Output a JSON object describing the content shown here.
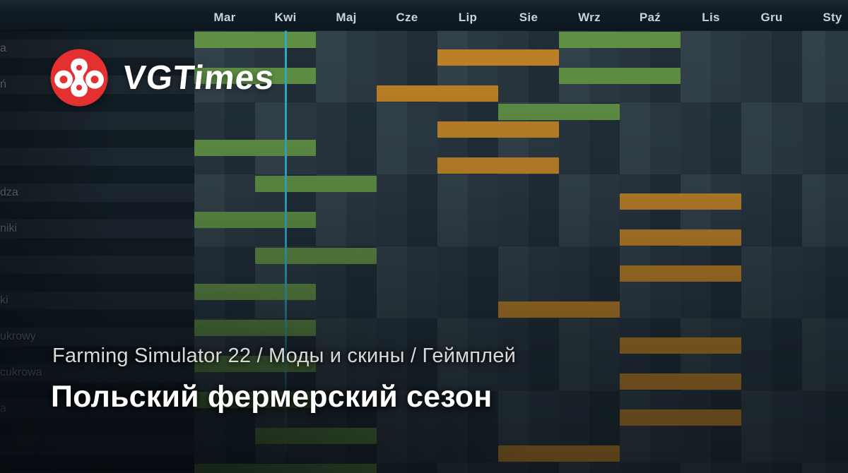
{
  "branding": {
    "name": "VGTimes",
    "logo": {
      "icon": "vgtimes-logo-icon",
      "bg_color": "#e43030",
      "glyph_color": "#ffffff"
    }
  },
  "breadcrumb": {
    "text": "Farming Simulator 22 / Моды и скины / Геймплей"
  },
  "title": {
    "text": "Польский фермерский сезон"
  },
  "chart_data": {
    "type": "gantt-calendar",
    "description_visible": "in-game crop calendar, green = planting period, orange = harvest period",
    "months": [
      "Mar",
      "Kwi",
      "Maj",
      "Cze",
      "Lip",
      "Sie",
      "Wrz",
      "Paź",
      "Lis",
      "Gru",
      "Sty"
    ],
    "today_marker": {
      "month": "Kwi",
      "position": "middle",
      "color": "#2fb9d6"
    },
    "colors": {
      "planting": "#6ca24b",
      "harvest": "#d7922a",
      "today_line": "#35c3dd"
    },
    "rows": [
      {
        "label_fragment": "a",
        "planting": [
          [
            "Mar",
            "Kwi"
          ],
          [
            "Wrz",
            "Paź"
          ]
        ],
        "harvest": [
          [
            "Lip",
            "Sie"
          ]
        ]
      },
      {
        "label_fragment": "ń",
        "planting": [
          [
            "Mar",
            "Kwi"
          ],
          [
            "Wrz",
            "Paź"
          ]
        ],
        "harvest": [
          [
            "Cze",
            "Lip"
          ]
        ]
      },
      {
        "label_fragment": "",
        "planting": [
          [
            "Sie",
            "Wrz"
          ]
        ],
        "harvest": [
          [
            "Lip",
            "Sie"
          ]
        ]
      },
      {
        "label_fragment": "",
        "planting": [
          [
            "Mar",
            "Kwi"
          ]
        ],
        "harvest": [
          [
            "Lip",
            "Sie"
          ]
        ]
      },
      {
        "label_fragment": "dza",
        "planting": [
          [
            "Kwi",
            "Maj"
          ]
        ],
        "harvest": [
          [
            "Paź",
            "Lis"
          ]
        ]
      },
      {
        "label_fragment": "niki",
        "planting": [
          [
            "Mar",
            "Kwi"
          ]
        ],
        "harvest": [
          [
            "Paź",
            "Lis"
          ]
        ]
      },
      {
        "label_fragment": "",
        "planting": [
          [
            "Kwi",
            "Maj"
          ]
        ],
        "harvest": [
          [
            "Paź",
            "Lis"
          ]
        ]
      },
      {
        "label_fragment": "ki",
        "planting": [
          [
            "Mar",
            "Kwi"
          ]
        ],
        "harvest": [
          [
            "Sie",
            "Wrz"
          ]
        ]
      },
      {
        "label_fragment": "ukrowy",
        "planting": [
          [
            "Mar",
            "Kwi"
          ]
        ],
        "harvest": [
          [
            "Paź",
            "Lis"
          ]
        ]
      },
      {
        "label_fragment": "cukrowa",
        "planting": [
          [
            "Mar",
            "Kwi"
          ]
        ],
        "harvest": [
          [
            "Paź",
            "Lis"
          ]
        ]
      },
      {
        "label_fragment": "a",
        "planting": [
          [
            "Mar",
            "Kwi"
          ]
        ],
        "harvest": [
          [
            "Paź",
            "Lis"
          ]
        ]
      },
      {
        "label_fragment": "",
        "planting": [
          [
            "Kwi",
            "Maj"
          ]
        ],
        "harvest": [
          [
            "Sie",
            "Wrz"
          ]
        ]
      },
      {
        "label_fragment": "",
        "planting": [
          [
            "Mar",
            "Maj"
          ]
        ],
        "harvest": []
      }
    ]
  }
}
